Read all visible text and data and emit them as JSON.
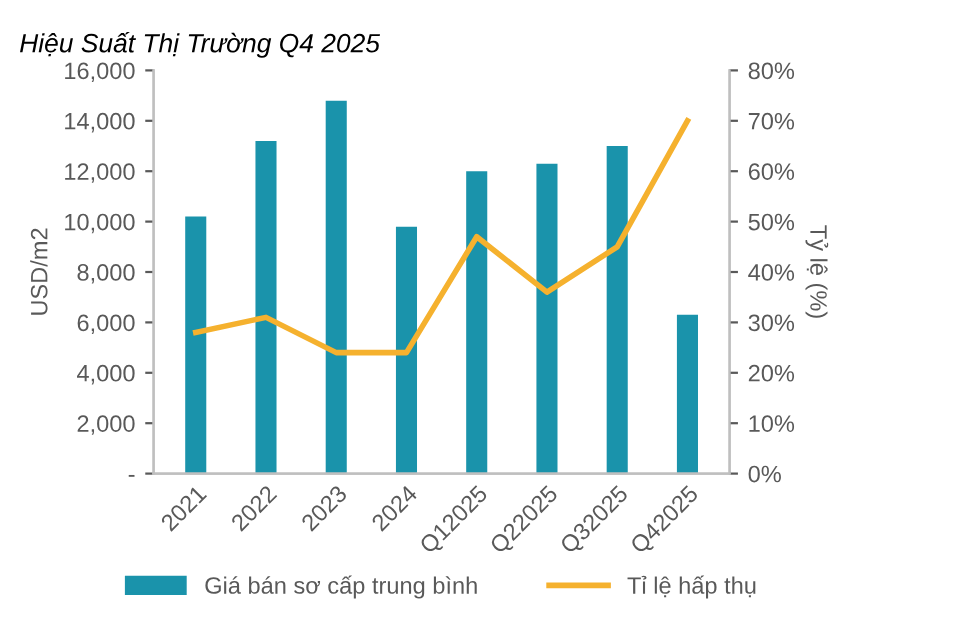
{
  "chart_data": {
    "type": "bar",
    "title": "Hiệu Suất Thị Trường Q4 2025",
    "ylabel": "USD/m2",
    "y2label": "Tỷ lệ (%)",
    "categories": [
      "2021",
      "2022",
      "2023",
      "2024",
      "Q12025",
      "Q22025",
      "Q32025",
      "Q42025"
    ],
    "series": [
      {
        "name": "Giá bán sơ cấp trung bình",
        "color": "#1a93ab",
        "values": [
          10200,
          13200,
          14800,
          9800,
          12000,
          12300,
          13000,
          6300
        ]
      },
      {
        "name": "Tỉ lệ hấp thụ",
        "type": "line",
        "axis": "y2",
        "color": "#f5b12e",
        "values": [
          28,
          31,
          24,
          24,
          47,
          36,
          45,
          70
        ]
      }
    ],
    "ylim": [
      0,
      16000
    ],
    "yticks": [
      {
        "value": 0,
        "label": "-"
      },
      {
        "value": 2000,
        "label": "2,000"
      },
      {
        "value": 4000,
        "label": "4,000"
      },
      {
        "value": 6000,
        "label": "6,000"
      },
      {
        "value": 8000,
        "label": "8,000"
      },
      {
        "value": 10000,
        "label": "10,000"
      },
      {
        "value": 12000,
        "label": "12,000"
      },
      {
        "value": 14000,
        "label": "14,000"
      },
      {
        "value": 16000,
        "label": "16,000"
      }
    ],
    "y2lim": [
      0,
      80
    ],
    "y2ticks": [
      {
        "value": 0,
        "label": "0%"
      },
      {
        "value": 10,
        "label": "10%"
      },
      {
        "value": 20,
        "label": "20%"
      },
      {
        "value": 30,
        "label": "30%"
      },
      {
        "value": 40,
        "label": "40%"
      },
      {
        "value": 50,
        "label": "50%"
      },
      {
        "value": 60,
        "label": "60%"
      },
      {
        "value": 70,
        "label": "70%"
      },
      {
        "value": 80,
        "label": "80%"
      }
    ],
    "grid": false,
    "legend": "bottom",
    "marker": "none",
    "line_style": "solid"
  }
}
